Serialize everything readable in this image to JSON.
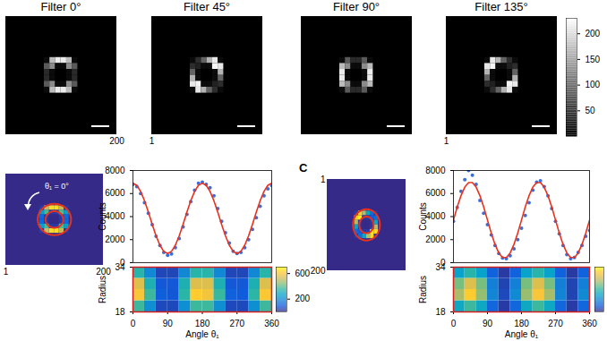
{
  "chart_data": [
    {
      "type": "image",
      "title": "Filter 0°",
      "color": "gray",
      "xlim": [
        1,
        200
      ],
      "ylim": [
        1,
        200
      ],
      "xticks": [
        200
      ],
      "tick_labels": "x",
      "xbins": [
        70,
        80,
        90,
        100,
        110,
        120,
        130
      ],
      "ybins": [
        70,
        80,
        90,
        100,
        110,
        120,
        130
      ],
      "values": [
        [
          10,
          169,
          212,
          212,
          169,
          10
        ],
        [
          81,
          125,
          10,
          10,
          125,
          81
        ],
        [
          38,
          10,
          0,
          0,
          10,
          38
        ],
        [
          38,
          10,
          0,
          0,
          10,
          38
        ],
        [
          81,
          125,
          10,
          10,
          125,
          81
        ],
        [
          10,
          169,
          212,
          212,
          169,
          10
        ]
      ],
      "color_range": [
        0,
        230
      ]
    },
    {
      "type": "image",
      "title": "Filter 45°",
      "color": "gray",
      "xlim": [
        1,
        200
      ],
      "ylim": [
        1,
        200
      ],
      "xticks": [
        1
      ],
      "tick_labels": "x",
      "xbins": [
        70,
        80,
        90,
        100,
        110,
        120,
        130
      ],
      "ybins": [
        70,
        80,
        90,
        100,
        110,
        120,
        130
      ],
      "values": [
        [
          10,
          41,
          89,
          161,
          209,
          10
        ],
        [
          41,
          30,
          10,
          10,
          220,
          209
        ],
        [
          89,
          10,
          0,
          0,
          10,
          161
        ],
        [
          161,
          10,
          0,
          0,
          10,
          89
        ],
        [
          209,
          220,
          10,
          10,
          30,
          41
        ],
        [
          10,
          209,
          161,
          89,
          41,
          10
        ]
      ],
      "color_range": [
        0,
        230
      ]
    },
    {
      "type": "image",
      "title": "Filter 90°",
      "color": "gray",
      "xlim": [
        1,
        200
      ],
      "ylim": [
        1,
        200
      ],
      "tick_labels": false,
      "xbins": [
        70,
        80,
        90,
        100,
        110,
        120,
        130
      ],
      "ybins": [
        70,
        80,
        90,
        100,
        110,
        120,
        130
      ],
      "values": [
        [
          10,
          81,
          38,
          38,
          81,
          10
        ],
        [
          169,
          125,
          10,
          10,
          125,
          169
        ],
        [
          212,
          10,
          0,
          0,
          10,
          212
        ],
        [
          212,
          10,
          0,
          0,
          10,
          212
        ],
        [
          169,
          125,
          10,
          10,
          125,
          169
        ],
        [
          10,
          81,
          38,
          38,
          81,
          10
        ]
      ],
      "color_range": [
        0,
        230
      ]
    },
    {
      "type": "image",
      "title": "Filter 135°",
      "color": "gray",
      "xlim": [
        1,
        200
      ],
      "ylim": [
        1,
        200
      ],
      "xticks": [
        1
      ],
      "tick_labels": "x",
      "xbins": [
        70,
        80,
        90,
        100,
        110,
        120,
        130
      ],
      "ybins": [
        70,
        80,
        90,
        100,
        110,
        120,
        130
      ],
      "values": [
        [
          10,
          209,
          161,
          89,
          41,
          10
        ],
        [
          209,
          220,
          10,
          10,
          30,
          41
        ],
        [
          161,
          10,
          0,
          0,
          10,
          89
        ],
        [
          89,
          10,
          0,
          0,
          10,
          161
        ],
        [
          41,
          30,
          10,
          10,
          220,
          209
        ],
        [
          10,
          41,
          89,
          161,
          209,
          10
        ]
      ],
      "color_range": [
        0,
        230
      ]
    },
    {
      "type": "colorbar",
      "color": "gray",
      "color_range": [
        0,
        230
      ],
      "ticks": [
        50,
        100,
        150,
        200
      ]
    },
    {
      "type": "image",
      "color": "parula",
      "xlim": [
        1,
        200
      ],
      "ylim": [
        1,
        200
      ],
      "xticks": [
        1,
        200
      ],
      "tick_labels": "x",
      "xbins": [
        70,
        80,
        90,
        100,
        110,
        120,
        130
      ],
      "ybins": [
        70,
        80,
        90,
        100,
        110,
        120,
        130
      ],
      "values": [
        [
          10,
          169,
          212,
          212,
          169,
          10
        ],
        [
          81,
          125,
          10,
          10,
          125,
          81
        ],
        [
          38,
          10,
          0,
          0,
          10,
          38
        ],
        [
          38,
          10,
          0,
          0,
          10,
          38
        ],
        [
          81,
          125,
          10,
          10,
          125,
          81
        ],
        [
          10,
          169,
          212,
          212,
          169,
          10
        ]
      ],
      "color_range": [
        0,
        230
      ],
      "annotation": "θ₁ = 0°",
      "ring_center": [
        100,
        100
      ],
      "ring_radii": [
        18,
        34
      ]
    },
    {
      "type": "scatter",
      "ylabel": "Counts",
      "xlim": [
        0,
        360
      ],
      "ylim": [
        0,
        8000
      ],
      "yticks": [
        0,
        2000,
        4000,
        6000,
        8000
      ],
      "tick_labels": "y",
      "x": [
        0,
        10,
        20,
        30,
        40,
        50,
        60,
        70,
        80,
        90,
        100,
        110,
        120,
        130,
        140,
        150,
        160,
        170,
        180,
        190,
        200,
        210,
        220,
        230,
        240,
        250,
        260,
        270,
        280,
        290,
        300,
        310,
        320,
        330,
        340,
        350,
        360
      ],
      "series": [
        {
          "type": "scatter",
          "color": "#3a6fd8",
          "values": [
            6800,
            6600,
            6000,
            5200,
            4300,
            3300,
            2300,
            1500,
            900,
            650,
            750,
            1300,
            2100,
            3100,
            4200,
            5300,
            6300,
            6900,
            7000,
            6800,
            6500,
            5800,
            4700,
            3600,
            2600,
            1700,
            1000,
            800,
            900,
            1300,
            2000,
            2900,
            3900,
            4900,
            5800,
            6400,
            6700
          ]
        },
        {
          "type": "line",
          "color": "#e8321e",
          "values": [
            6900,
            6716,
            6186,
            5375,
            4380,
            3320,
            2325,
            1514,
            984,
            800,
            984,
            1514,
            2325,
            3320,
            4380,
            5375,
            6186,
            6716,
            6900,
            6716,
            6186,
            5375,
            4380,
            3320,
            2325,
            1514,
            984,
            800,
            984,
            1514,
            2325,
            3320,
            4380,
            5375,
            6186,
            6716,
            6900
          ]
        }
      ]
    },
    {
      "type": "heatmap",
      "color": "parula",
      "xlabel": "Angle θ₁",
      "ylabel": "Radius",
      "xlim": [
        0,
        360
      ],
      "ylim": [
        18,
        34
      ],
      "xticks": [
        0,
        90,
        180,
        270,
        360
      ],
      "yticks": [
        18,
        34
      ],
      "xbins": [
        0,
        30,
        60,
        90,
        120,
        150,
        180,
        210,
        240,
        270,
        300,
        330,
        360
      ],
      "ybins": [
        18,
        22,
        26,
        30,
        34
      ],
      "values": [
        [
          366,
          210,
          54,
          54,
          210,
          366,
          366,
          210,
          54,
          54,
          210,
          366
        ],
        [
          600,
          365,
          95,
          80,
          340,
          620,
          590,
          360,
          100,
          85,
          345,
          605
        ],
        [
          549,
          315,
          81,
          81,
          315,
          549,
          549,
          315,
          81,
          81,
          315,
          549
        ],
        [
          336,
          193,
          50,
          50,
          193,
          336,
          336,
          193,
          50,
          50,
          193,
          336
        ]
      ],
      "colorbar": {
        "color_range": [
          0,
          700
        ],
        "ticks": [
          200,
          600
        ]
      }
    },
    {
      "type": "image",
      "panel_label": "C",
      "color": "parula",
      "xlim": [
        1,
        200
      ],
      "ylim": [
        1,
        200
      ],
      "yticks": [
        1,
        200
      ],
      "tick_labels": "y",
      "xbins": [
        70,
        80,
        90,
        100,
        110,
        120,
        130
      ],
      "ybins": [
        70,
        80,
        90,
        100,
        110,
        120,
        130
      ],
      "values": [
        [
          10,
          209,
          161,
          89,
          41,
          10
        ],
        [
          209,
          220,
          10,
          10,
          30,
          41
        ],
        [
          161,
          10,
          0,
          0,
          10,
          89
        ],
        [
          89,
          10,
          0,
          0,
          10,
          161
        ],
        [
          41,
          30,
          10,
          10,
          220,
          209
        ],
        [
          10,
          41,
          89,
          161,
          209,
          10
        ]
      ],
      "color_range": [
        0,
        230
      ],
      "ring_center": [
        100,
        100
      ],
      "ring_radii": [
        18,
        34
      ]
    },
    {
      "type": "scatter",
      "ylabel": "Counts",
      "xlim": [
        0,
        360
      ],
      "ylim": [
        0,
        8000
      ],
      "yticks": [
        0,
        2000,
        4000,
        6000,
        8000
      ],
      "tick_labels": "y",
      "x": [
        0,
        10,
        20,
        30,
        40,
        50,
        60,
        70,
        80,
        90,
        100,
        110,
        120,
        130,
        140,
        150,
        160,
        170,
        180,
        190,
        200,
        210,
        220,
        230,
        240,
        250,
        260,
        270,
        280,
        290,
        300,
        310,
        320,
        330,
        340,
        350,
        360
      ],
      "series": [
        {
          "type": "scatter",
          "color": "#3a6fd8",
          "values": [
            3600,
            4800,
            6200,
            7200,
            8000,
            7600,
            6800,
            5400,
            4300,
            3300,
            2400,
            1500,
            800,
            400,
            350,
            600,
            1200,
            2000,
            3000,
            4100,
            5200,
            6300,
            7000,
            7100,
            6600,
            5800,
            4700,
            3600,
            2500,
            1500,
            700,
            350,
            450,
            900,
            1500,
            2300,
            2800
          ]
        },
        {
          "type": "line",
          "color": "#e8321e",
          "values": [
            3700,
            4829,
            5821,
            6558,
            6950,
            6950,
            6558,
            5821,
            4829,
            3700,
            2571,
            1579,
            842,
            450,
            450,
            842,
            1579,
            2571,
            3700,
            4829,
            5821,
            6558,
            6950,
            6950,
            6558,
            5821,
            4829,
            3700,
            2571,
            1579,
            842,
            450,
            450,
            842,
            1579,
            2571,
            3700
          ]
        }
      ]
    },
    {
      "type": "heatmap",
      "color": "parula",
      "xlabel": "Angle θ₁",
      "ylabel": "Radius",
      "xlim": [
        0,
        360
      ],
      "ylim": [
        18,
        34
      ],
      "xticks": [
        0,
        90,
        180,
        270,
        360
      ],
      "yticks": [
        18,
        34
      ],
      "xbins": [
        0,
        30,
        60,
        90,
        120,
        150,
        180,
        210,
        240,
        270,
        300,
        330,
        360
      ],
      "ybins": [
        18,
        22,
        26,
        30,
        34
      ],
      "values": [
        [
          282,
          366,
          282,
          114,
          30,
          114,
          282,
          366,
          282,
          114,
          30,
          114
        ],
        [
          480,
          620,
          455,
          185,
          55,
          200,
          460,
          600,
          475,
          180,
          45,
          195
        ],
        [
          423,
          549,
          423,
          171,
          45,
          171,
          423,
          549,
          423,
          171,
          45,
          171
        ],
        [
          259,
          336,
          259,
          105,
          28,
          105,
          259,
          336,
          259,
          105,
          28,
          105
        ]
      ],
      "colorbar": {
        "color_range": [
          0,
          700
        ]
      }
    }
  ]
}
